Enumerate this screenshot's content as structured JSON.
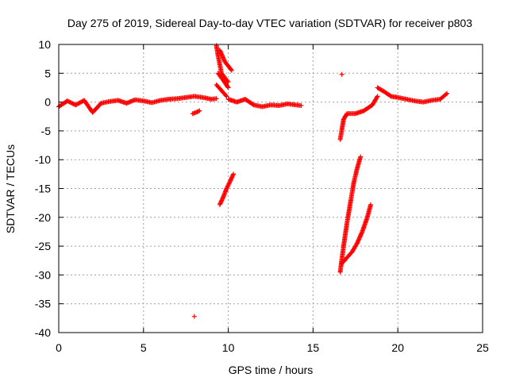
{
  "chart_data": {
    "type": "scatter",
    "title": "Day 275 of 2019, Sidereal Day-to-day VTEC variation (SDTVAR) for receiver p803",
    "xlabel": "GPS time / hours",
    "ylabel": "SDTVAR / TECUs",
    "xlim": [
      0,
      25
    ],
    "ylim": [
      -40,
      10
    ],
    "xticks": [
      0,
      5,
      10,
      15,
      20,
      25
    ],
    "yticks": [
      -40,
      -35,
      -30,
      -25,
      -20,
      -15,
      -10,
      -5,
      0,
      5,
      10
    ],
    "grid": true,
    "marker": "+",
    "color": "#ff0000",
    "series": [
      {
        "name": "p803 SDTVAR",
        "segments": [
          {
            "x": [
              0.0,
              0.5,
              1.0,
              1.5,
              2.0,
              2.5,
              3.0,
              3.5,
              4.0,
              4.5,
              5.0,
              5.5,
              6.0,
              6.5,
              7.0,
              7.5,
              8.0,
              8.5,
              9.0,
              9.3
            ],
            "y": [
              -0.8,
              0.2,
              -0.5,
              0.3,
              -1.8,
              -0.2,
              0.1,
              0.3,
              -0.2,
              0.4,
              0.2,
              -0.1,
              0.3,
              0.5,
              0.6,
              0.8,
              1.0,
              0.8,
              0.5,
              0.6
            ]
          },
          {
            "x": [
              7.9,
              8.1,
              8.3
            ],
            "y": [
              -2.0,
              -1.8,
              -1.5
            ]
          },
          {
            "x": [
              9.3,
              9.4,
              9.5,
              9.6,
              9.8,
              10.0
            ],
            "y": [
              9.8,
              8.0,
              6.5,
              5.0,
              4.2,
              3.5
            ]
          },
          {
            "x": [
              9.5,
              9.8,
              10.2
            ],
            "y": [
              9.0,
              7.0,
              5.5
            ]
          },
          {
            "x": [
              9.4,
              9.7,
              10.0
            ],
            "y": [
              5.0,
              3.8,
              2.5
            ]
          },
          {
            "x": [
              9.3,
              9.6,
              9.9
            ],
            "y": [
              3.0,
              2.0,
              1.0
            ]
          },
          {
            "x": [
              10.0,
              10.5,
              11.0,
              11.5,
              12.0,
              12.5,
              13.0,
              13.5,
              14.0,
              14.3
            ],
            "y": [
              0.5,
              0.0,
              0.5,
              -0.5,
              -0.8,
              -0.5,
              -0.6,
              -0.3,
              -0.5,
              -0.6
            ]
          },
          {
            "x": [
              9.5,
              9.7,
              9.9,
              10.1,
              10.3
            ],
            "y": [
              -17.8,
              -16.5,
              -15.0,
              -13.8,
              -12.5
            ]
          },
          {
            "x": [
              16.6,
              16.8,
              17.0,
              17.5,
              18.0,
              18.5,
              18.8
            ],
            "y": [
              -6.5,
              -3.0,
              -2.0,
              -2.0,
              -1.5,
              -0.5,
              1.0
            ]
          },
          {
            "x": [
              18.8,
              19.2,
              19.6,
              20.0,
              20.5,
              21.0,
              21.5,
              22.0,
              22.5,
              22.9
            ],
            "y": [
              2.5,
              1.8,
              1.0,
              0.8,
              0.5,
              0.2,
              0.0,
              0.3,
              0.5,
              1.5
            ]
          },
          {
            "x": [
              16.6,
              16.8,
              17.0,
              17.2,
              17.4,
              17.6,
              17.8
            ],
            "y": [
              -29.5,
              -25.0,
              -21.0,
              -17.5,
              -14.0,
              -11.5,
              -9.5
            ]
          },
          {
            "x": [
              16.7,
              17.0,
              17.3,
              17.6,
              17.9,
              18.2,
              18.4
            ],
            "y": [
              -28.0,
              -27.0,
              -26.0,
              -24.5,
              -22.5,
              -20.0,
              -17.8
            ]
          }
        ],
        "isolated_points": {
          "x": [
            8.0,
            16.7
          ],
          "y": [
            -37.2,
            4.8
          ]
        }
      }
    ]
  }
}
